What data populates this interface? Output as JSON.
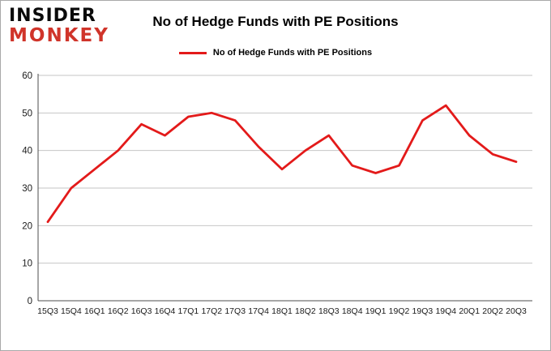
{
  "logo": {
    "line1": "INSIDER",
    "line2": "MONKEY",
    "line1_color": "#0a0a0a",
    "line2_color": "#d0342a"
  },
  "header": {
    "title": "No of Hedge Funds with PE Positions"
  },
  "legend": {
    "label": "No of Hedge Funds with PE Positions",
    "color": "#e31a1a"
  },
  "chart_data": {
    "type": "line",
    "title": "No of Hedge Funds with PE Positions",
    "categories": [
      "15Q3",
      "15Q4",
      "16Q1",
      "16Q2",
      "16Q3",
      "16Q4",
      "17Q1",
      "17Q2",
      "17Q3",
      "17Q4",
      "18Q1",
      "18Q2",
      "18Q3",
      "18Q4",
      "19Q1",
      "19Q2",
      "19Q3",
      "19Q4",
      "20Q1",
      "20Q2",
      "20Q3"
    ],
    "series": [
      {
        "name": "No of Hedge Funds with PE Positions",
        "color": "#e31a1a",
        "values": [
          21,
          30,
          35,
          40,
          47,
          44,
          49,
          50,
          48,
          41,
          35,
          40,
          44,
          36,
          34,
          36,
          48,
          52,
          44,
          39,
          37
        ]
      }
    ],
    "xlabel": "",
    "ylabel": "",
    "ylim": [
      0,
      60
    ],
    "yticks": [
      0,
      10,
      20,
      30,
      40,
      50,
      60
    ],
    "grid": true,
    "legend_position": "top",
    "gridline_color": "#c6c6c6",
    "axis_color": "#4d4d4d",
    "tick_label_color": "#1a1a1a"
  }
}
